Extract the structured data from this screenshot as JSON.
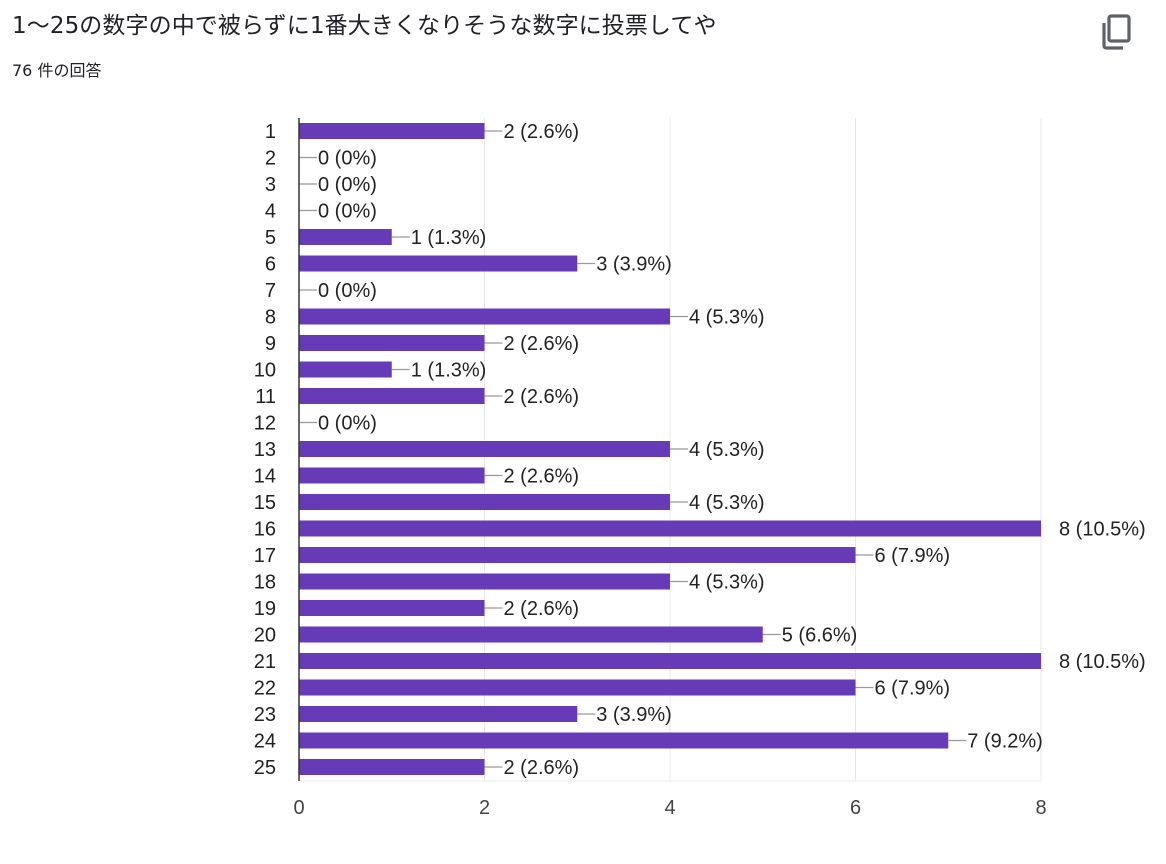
{
  "header": {
    "title": "1〜25の数字の中で被らずに1番大きくなりそうな数字に投票してや",
    "response_count": "76 件の回答",
    "copy_icon": "copy-icon"
  },
  "colors": {
    "bar": "#673ab7",
    "axis": "#333333",
    "grid": "#e8e8e8",
    "connector": "#999999",
    "icon": "#5f6368"
  },
  "chart_data": {
    "type": "bar",
    "orientation": "horizontal",
    "categories": [
      "1",
      "2",
      "3",
      "4",
      "5",
      "6",
      "7",
      "8",
      "9",
      "10",
      "11",
      "12",
      "13",
      "14",
      "15",
      "16",
      "17",
      "18",
      "19",
      "20",
      "21",
      "22",
      "23",
      "24",
      "25"
    ],
    "values": [
      2,
      0,
      0,
      0,
      1,
      3,
      0,
      4,
      2,
      1,
      2,
      0,
      4,
      2,
      4,
      8,
      6,
      4,
      2,
      5,
      8,
      6,
      3,
      7,
      2
    ],
    "value_labels": [
      "2 (2.6%)",
      "0 (0%)",
      "0 (0%)",
      "0 (0%)",
      "1 (1.3%)",
      "3 (3.9%)",
      "0 (0%)",
      "4 (5.3%)",
      "2 (2.6%)",
      "1 (1.3%)",
      "2 (2.6%)",
      "0 (0%)",
      "4 (5.3%)",
      "2 (2.6%)",
      "4 (5.3%)",
      "8 (10.5%)",
      "6 (7.9%)",
      "4 (5.3%)",
      "2 (2.6%)",
      "5 (6.6%)",
      "8 (10.5%)",
      "6 (7.9%)",
      "3 (3.9%)",
      "7 (9.2%)",
      "2 (2.6%)"
    ],
    "xlim": [
      0,
      8
    ],
    "x_ticks": [
      "0",
      "2",
      "4",
      "6",
      "8"
    ],
    "grid": true,
    "legend": "none"
  }
}
